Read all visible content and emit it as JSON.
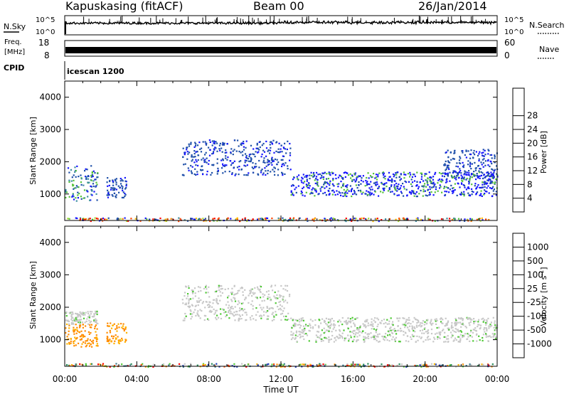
{
  "header": {
    "site": "Kapuskasing (fitACF)",
    "beam": "Beam 00",
    "date": "26/Jan/2014"
  },
  "noise_panel": {
    "left_label": "N.Sky",
    "left_ticks": [
      "10^5",
      "10^0"
    ],
    "right_ticks": [
      "10^5",
      "10^0"
    ],
    "right_label": "N.Search",
    "right_style": "dotted"
  },
  "freq_panel": {
    "left_label_1": "Freq.",
    "left_label_2": "[MHz]",
    "left_ticks": [
      "18",
      "8"
    ],
    "right_ticks": [
      "60",
      "0"
    ],
    "right_label": "Nave",
    "right_style": "dotted"
  },
  "cpid": {
    "label": "CPID",
    "value": "icescan 1200"
  },
  "chart_data": [
    {
      "type": "heatmap",
      "quantity": "Power",
      "ylabel": "Slant Range [km]",
      "ylim": [
        180,
        4500
      ],
      "yticks": [
        "1000",
        "2000",
        "3000",
        "4000"
      ],
      "xlim_hours": [
        0,
        24
      ],
      "colorbar": {
        "label": "Power [dB]",
        "ticks": [
          "4",
          "8",
          "12",
          "16",
          "20",
          "24",
          "28"
        ],
        "colors": [
          "#1515ff",
          "#1e4fa8",
          "#3e8fa0",
          "#55c23a",
          "#a6dc30",
          "#ffbf00",
          "#ff8000",
          "#ff4400",
          "#ff0000"
        ]
      },
      "scatter_regions": [
        {
          "t": [
            0.0,
            1.8
          ],
          "range": [
            800,
            1900
          ],
          "value": "green-blue"
        },
        {
          "t": [
            2.3,
            3.4
          ],
          "range": [
            900,
            1550
          ],
          "value": "blue"
        },
        {
          "t": [
            6.5,
            12.5
          ],
          "range": [
            1600,
            2700
          ],
          "value": "blue"
        },
        {
          "t": [
            12.5,
            24.0
          ],
          "range": [
            950,
            1700
          ],
          "value": "blue-green"
        },
        {
          "t": [
            21.0,
            24.0
          ],
          "range": [
            1500,
            2400
          ],
          "value": "blue"
        },
        {
          "t": [
            0.0,
            24.0
          ],
          "range": [
            180,
            280
          ],
          "value": "mixed"
        }
      ]
    },
    {
      "type": "heatmap",
      "quantity": "Velocity",
      "ylabel": "Slant Range [km]",
      "ylim": [
        180,
        4500
      ],
      "yticks": [
        "1000",
        "2000",
        "3000",
        "4000"
      ],
      "xlim_hours": [
        0,
        24
      ],
      "xticks": [
        "00:00",
        "04:00",
        "08:00",
        "12:00",
        "16:00",
        "20:00",
        "00:00"
      ],
      "xlabel": "Time UT",
      "colorbar": {
        "label": "Velocity [m s^-1]",
        "ticks": [
          "1000",
          "500",
          "100",
          "25",
          "-25",
          "-100",
          "-500",
          "-1000"
        ],
        "colors": [
          "#1e3cb4",
          "#3a7a8c",
          "#2a8c5a",
          "#4cc832",
          "#c8c8c8",
          "#ffb400",
          "#ff8c00",
          "#ff5000",
          "#ff0000"
        ]
      },
      "scatter_regions": [
        {
          "t": [
            0.0,
            1.8
          ],
          "range": [
            800,
            1500
          ],
          "value": "orange"
        },
        {
          "t": [
            0.0,
            1.8
          ],
          "range": [
            1500,
            1900
          ],
          "value": "grey"
        },
        {
          "t": [
            2.3,
            3.4
          ],
          "range": [
            900,
            1550
          ],
          "value": "orange"
        },
        {
          "t": [
            6.5,
            12.5
          ],
          "range": [
            1600,
            2700
          ],
          "value": "grey"
        },
        {
          "t": [
            12.5,
            24.0
          ],
          "range": [
            950,
            1700
          ],
          "value": "grey"
        },
        {
          "t": [
            0.0,
            24.0
          ],
          "range": [
            180,
            280
          ],
          "value": "mixed"
        }
      ]
    }
  ]
}
